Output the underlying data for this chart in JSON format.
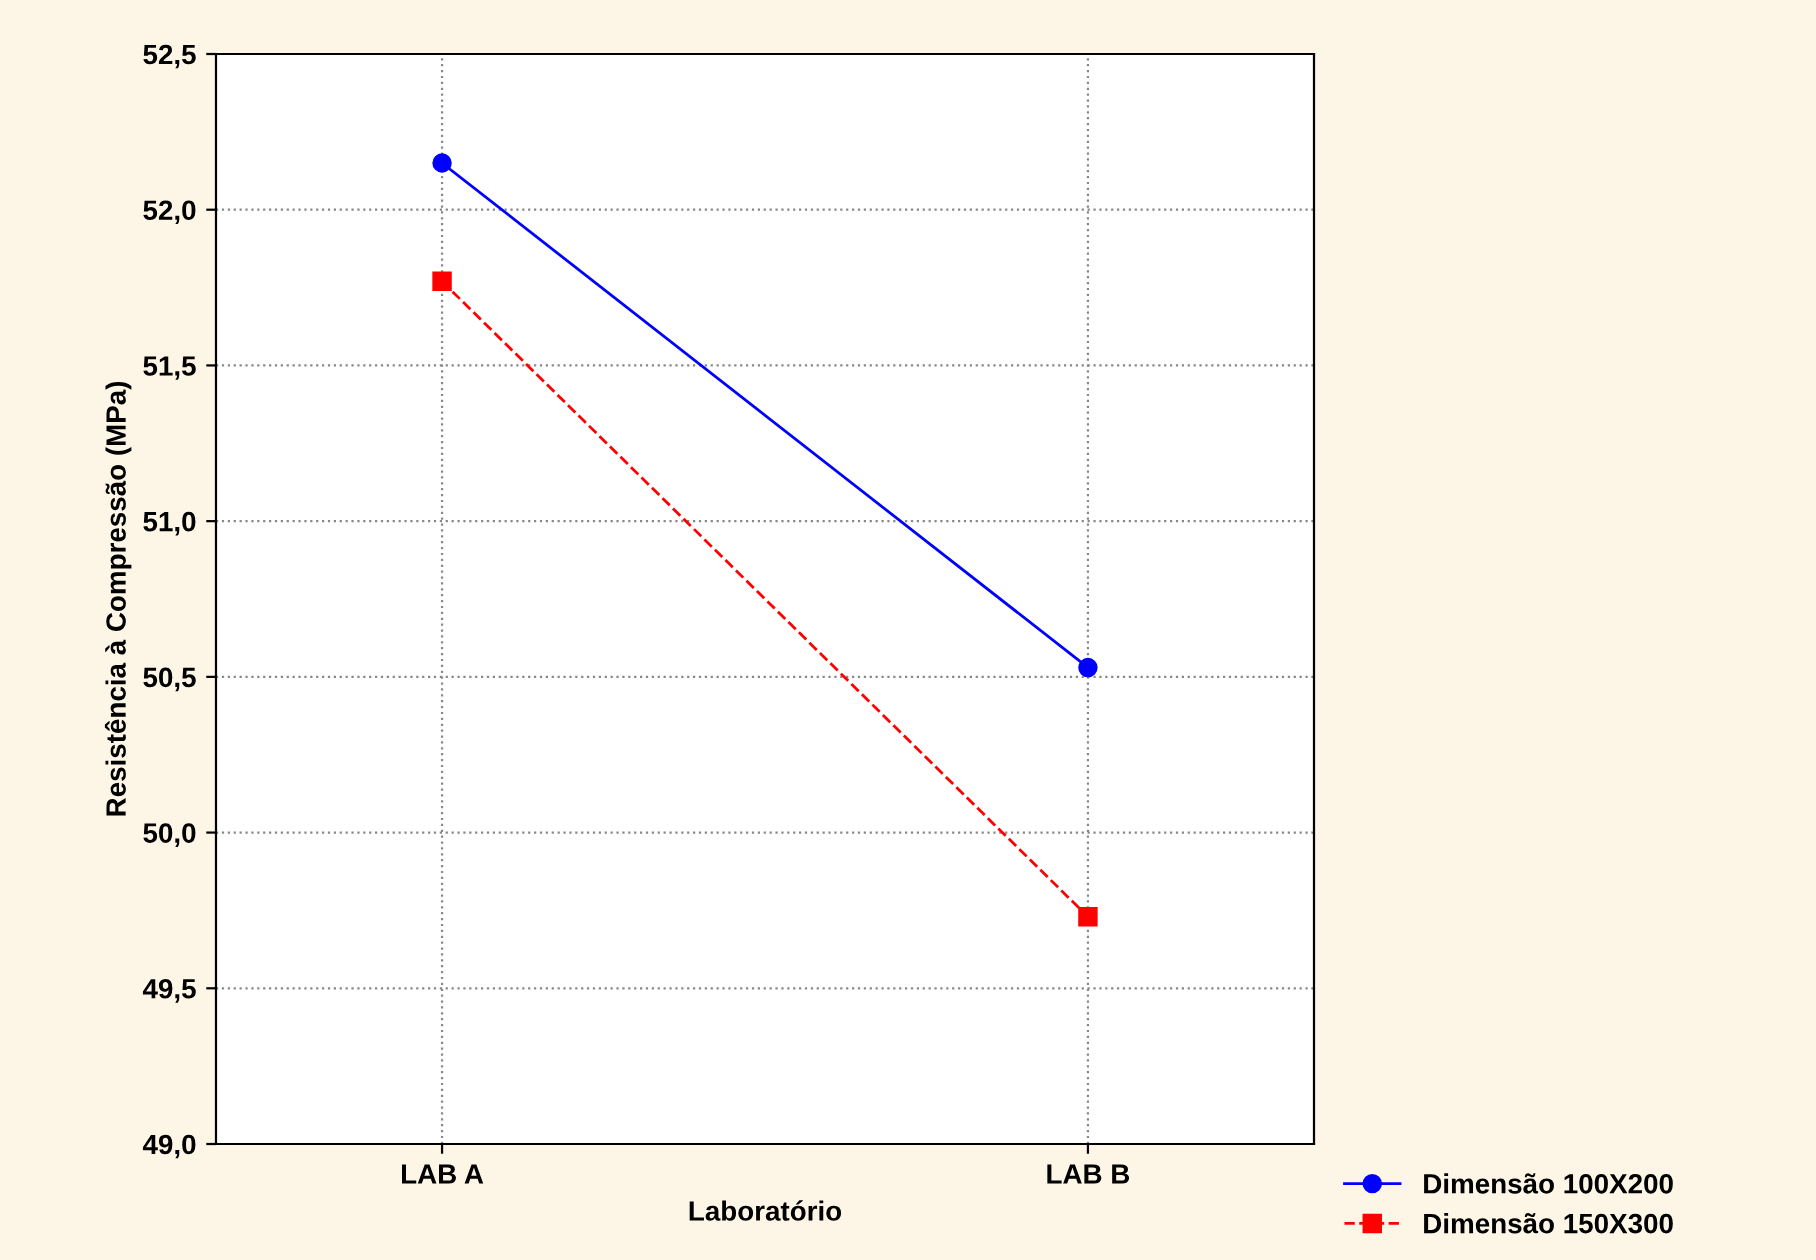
{
  "chart_data": {
    "type": "line",
    "xlabel": "Laboratório",
    "ylabel": "Resistência à Compressão (MPa)",
    "categories": [
      "LAB A",
      "LAB B"
    ],
    "series": [
      {
        "name": "Dimensão 100X200",
        "color": "#0000ff",
        "values": [
          52.15,
          50.53
        ],
        "marker": "circle",
        "line_style": "solid"
      },
      {
        "name": "Dimensão 150X300",
        "color": "#ff0000",
        "values": [
          51.77,
          49.73
        ],
        "marker": "square",
        "line_style": "dashed"
      }
    ],
    "ylim": [
      49.0,
      52.5
    ],
    "yticks": [
      {
        "value": 49.0,
        "label": "49,0"
      },
      {
        "value": 49.5,
        "label": "49,5"
      },
      {
        "value": 50.0,
        "label": "50,0"
      },
      {
        "value": 50.5,
        "label": "50,5"
      },
      {
        "value": 51.0,
        "label": "51,0"
      },
      {
        "value": 51.5,
        "label": "51,5"
      },
      {
        "value": 52.0,
        "label": "52,0"
      },
      {
        "value": 52.5,
        "label": "52,5"
      }
    ],
    "grid": true,
    "legend": "bottom right"
  }
}
